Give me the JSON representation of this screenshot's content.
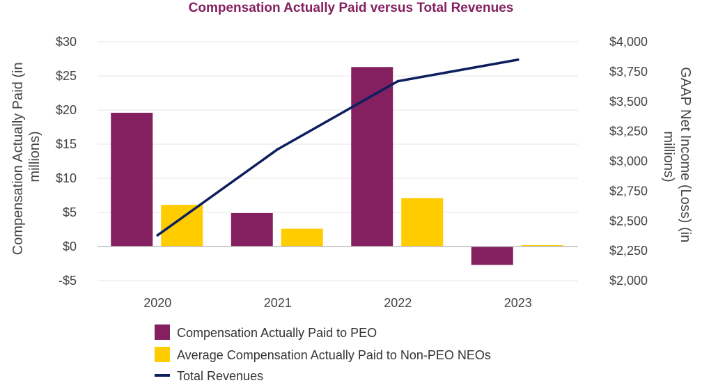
{
  "chart_data": {
    "type": "bar",
    "title": "Compensation Actually Paid versus Total Revenues",
    "categories": [
      "2020",
      "2021",
      "2022",
      "2023"
    ],
    "ylabel_left": [
      "Compensation Actually Paid (in",
      "millions)"
    ],
    "ylabel_right": [
      "GAAP Net Income (Loss) (in",
      "millions)"
    ],
    "left_axis": {
      "ylim": [
        -5,
        30
      ],
      "ticks": [
        30,
        25,
        20,
        15,
        10,
        5,
        0,
        -5
      ],
      "tick_labels": [
        "$30",
        "$25",
        "$20",
        "$15",
        "$10",
        "$5",
        "$0",
        "-$5"
      ]
    },
    "right_axis": {
      "ylim": [
        2000,
        4000
      ],
      "ticks": [
        4000,
        3750,
        3500,
        3250,
        3000,
        2750,
        2500,
        2250,
        2000
      ],
      "tick_labels": [
        "$4,000",
        "$3,750",
        "$3,500",
        "$3,250",
        "$3,000",
        "$2,750",
        "$2,500",
        "$2,250",
        "$2,000"
      ]
    },
    "grid": true,
    "legend_position": "bottom",
    "series": [
      {
        "name": "Compensation Actually Paid to PEO",
        "kind": "bar",
        "axis": "left",
        "color": "#84205f",
        "values": [
          19.6,
          4.9,
          26.3,
          -2.7
        ]
      },
      {
        "name": "Average Compensation Actually Paid to Non-PEO NEOs",
        "kind": "bar",
        "axis": "left",
        "color": "#ffcc00",
        "values": [
          6.1,
          2.6,
          7.1,
          0.2
        ]
      },
      {
        "name": "Total Revenues",
        "kind": "line",
        "axis": "right",
        "color": "#0c1e5e",
        "values": [
          2380,
          3100,
          3670,
          3850
        ]
      }
    ]
  }
}
